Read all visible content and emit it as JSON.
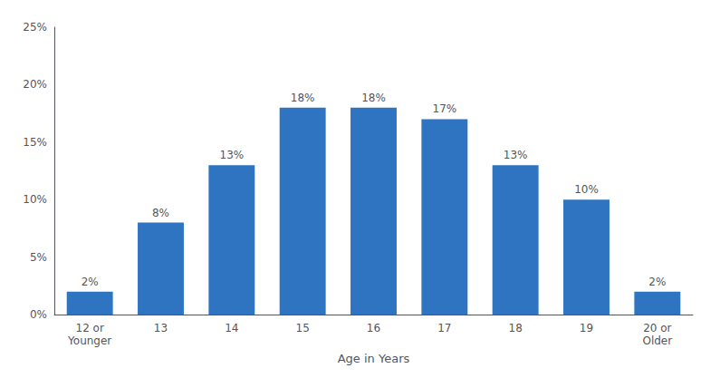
{
  "chart_data": {
    "type": "bar",
    "categories": [
      "12 or\nYounger",
      "13",
      "14",
      "15",
      "16",
      "17",
      "18",
      "19",
      "20 or\nOlder"
    ],
    "values": [
      2,
      8,
      13,
      18,
      18,
      17,
      13,
      10,
      2
    ],
    "value_labels": [
      "2%",
      "8%",
      "13%",
      "18%",
      "18%",
      "17%",
      "13%",
      "10%",
      "2%"
    ],
    "data_labels": true,
    "color": "#2E74C0",
    "xlabel": "Age in Years",
    "ylim": [
      0,
      25
    ],
    "yticks": [
      {
        "value": 0,
        "label": "0%"
      },
      {
        "value": 5,
        "label": "5%"
      },
      {
        "value": 10,
        "label": "10%"
      },
      {
        "value": 15,
        "label": "15%"
      },
      {
        "value": 20,
        "label": "20%"
      },
      {
        "value": 25,
        "label": "25%"
      }
    ],
    "grid": false
  }
}
